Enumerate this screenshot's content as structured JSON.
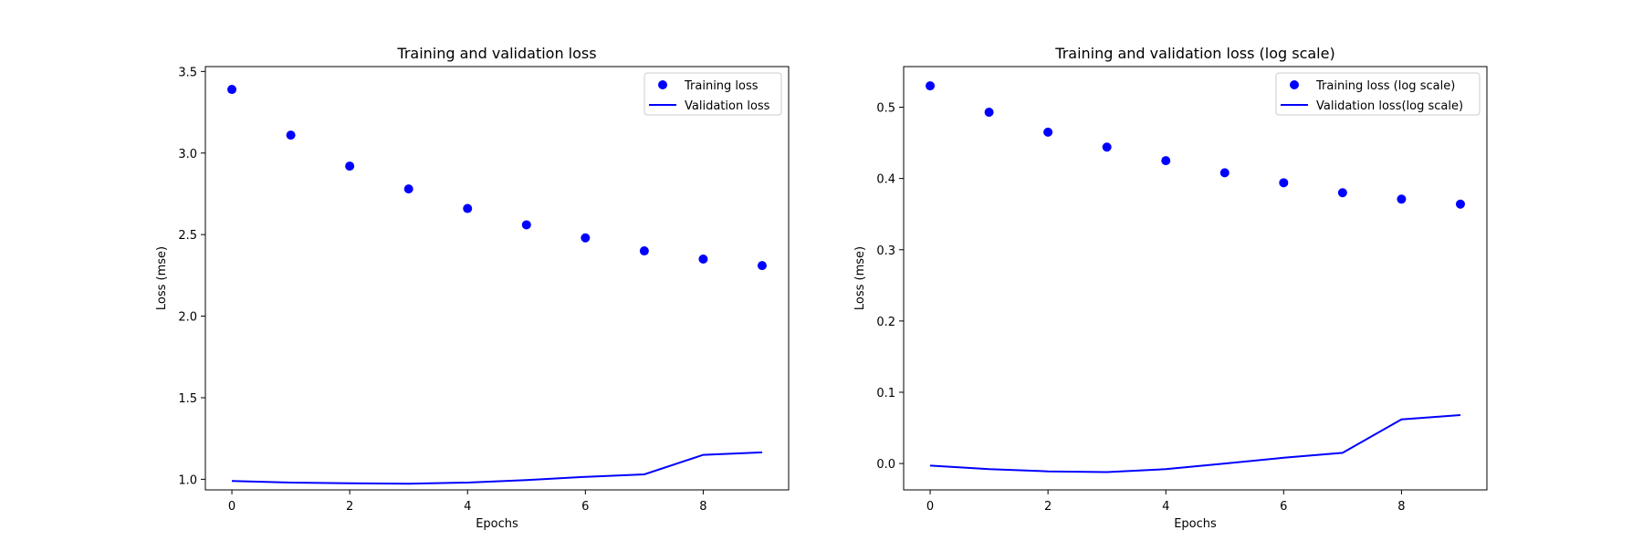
{
  "chart_data": [
    {
      "type": "scatter+line",
      "title": "Training and validation loss",
      "xlabel": "Epochs",
      "ylabel": "Loss (mse)",
      "xlim": [
        -0.45,
        9.45
      ],
      "ylim": [
        0.935,
        3.53
      ],
      "xticks": [
        0,
        2,
        4,
        6,
        8
      ],
      "yticks": [
        1.0,
        1.5,
        2.0,
        2.5,
        3.0,
        3.5
      ],
      "ytick_labels": [
        "1.0",
        "1.5",
        "2.0",
        "2.5",
        "3.0",
        "3.5"
      ],
      "grid": false,
      "legend_position": "top-right",
      "x": [
        0,
        1,
        2,
        3,
        4,
        5,
        6,
        7,
        8,
        9
      ],
      "series": [
        {
          "name": "Training loss",
          "style": "markers",
          "color": "#0000ff",
          "values": [
            3.39,
            3.11,
            2.92,
            2.78,
            2.66,
            2.56,
            2.48,
            2.4,
            2.35,
            2.31
          ]
        },
        {
          "name": "Validation loss",
          "style": "line",
          "color": "#0000ff",
          "values": [
            0.99,
            0.98,
            0.975,
            0.973,
            0.98,
            0.995,
            1.015,
            1.03,
            1.15,
            1.165
          ]
        }
      ]
    },
    {
      "type": "scatter+line",
      "title": "Training and validation loss (log scale)",
      "xlabel": "Epochs",
      "ylabel": "Loss (mse)",
      "xlim": [
        -0.45,
        9.45
      ],
      "ylim": [
        -0.037,
        0.557
      ],
      "xticks": [
        0,
        2,
        4,
        6,
        8
      ],
      "yticks": [
        0.0,
        0.1,
        0.2,
        0.3,
        0.4,
        0.5
      ],
      "ytick_labels": [
        "0.0",
        "0.1",
        "0.2",
        "0.3",
        "0.4",
        "0.5"
      ],
      "grid": false,
      "legend_position": "top-right",
      "x": [
        0,
        1,
        2,
        3,
        4,
        5,
        6,
        7,
        8,
        9
      ],
      "series": [
        {
          "name": "Training loss (log scale)",
          "style": "markers",
          "color": "#0000ff",
          "values": [
            0.53,
            0.493,
            0.465,
            0.444,
            0.425,
            0.408,
            0.394,
            0.38,
            0.371,
            0.364
          ]
        },
        {
          "name": "Validation loss(log scale)",
          "style": "line",
          "color": "#0000ff",
          "values": [
            -0.003,
            -0.008,
            -0.011,
            -0.012,
            -0.008,
            0.0,
            0.008,
            0.015,
            0.062,
            0.068
          ]
        }
      ]
    }
  ]
}
